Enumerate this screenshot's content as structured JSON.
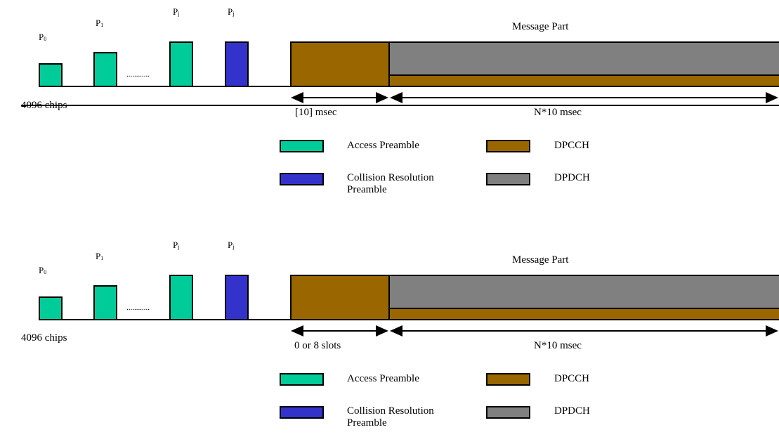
{
  "colors": {
    "access_preamble": "#00cc99",
    "collision_preamble": "#3333cc",
    "dpcch": "#996600",
    "dpdch": "#808080"
  },
  "diagrams": [
    {
      "p0_label": "P",
      "p0_sub": "0",
      "p1_label": "P",
      "p1_sub": "1",
      "pj_a_label": "P",
      "pj_a_sub": "j",
      "pj_b_label": "P",
      "pj_b_sub": "j",
      "dots": "............",
      "message_part": "Message Part",
      "chips": "4096 chips",
      "first_duration": "[10] msec",
      "second_duration": "N*10 msec",
      "legend": {
        "access_preamble": "Access Preamble",
        "collision_preamble_line1": "Collision Resolution",
        "collision_preamble_line2": "Preamble",
        "dpcch": "DPCCH",
        "dpdch": "DPDCH"
      }
    },
    {
      "p0_label": "P",
      "p0_sub": "0",
      "p1_label": "P",
      "p1_sub": "1",
      "pj_a_label": "P",
      "pj_a_sub": "j",
      "pj_b_label": "P",
      "pj_b_sub": "j",
      "dots": "............",
      "message_part": "Message Part",
      "chips": "4096 chips",
      "first_duration": "0 or 8 slots",
      "second_duration": "N*10 msec",
      "legend": {
        "access_preamble": "Access Preamble",
        "collision_preamble_line1": "Collision Resolution",
        "collision_preamble_line2": "Preamble",
        "dpcch": "DPCCH",
        "dpdch": "DPDCH"
      }
    }
  ]
}
